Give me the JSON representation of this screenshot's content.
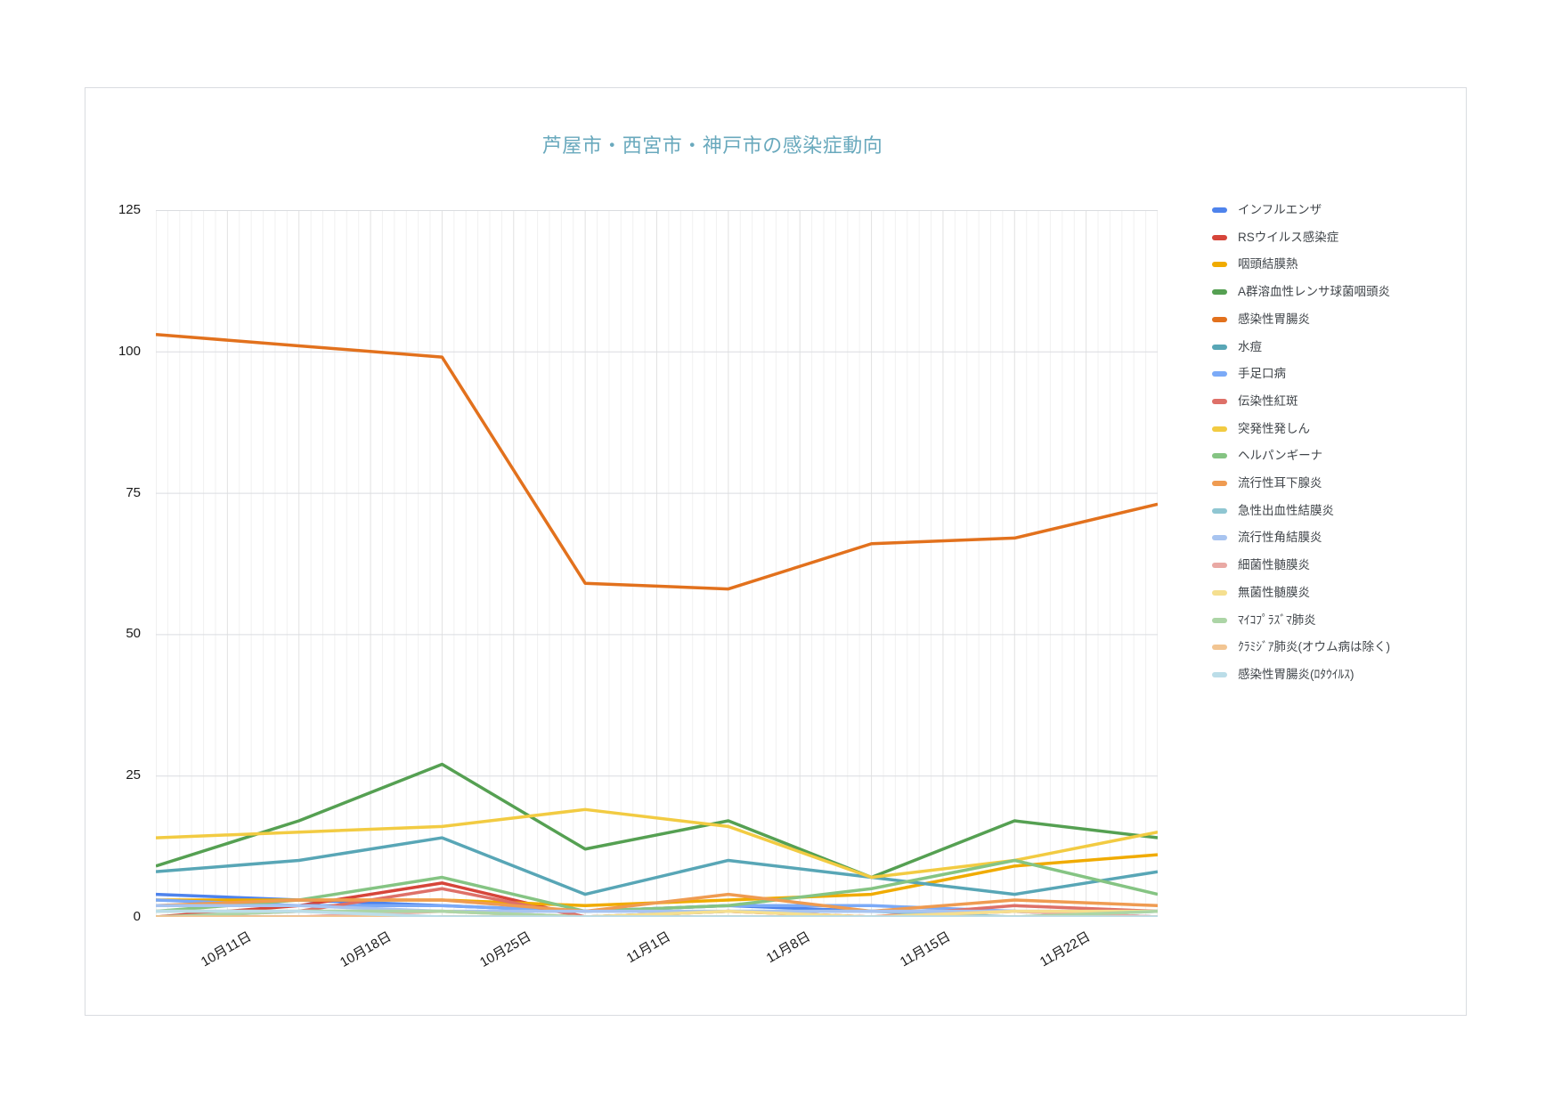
{
  "title": "芦屋市・西宮市・神戸市の感染症動向",
  "title_color": "#69a9bd",
  "chart_data": {
    "type": "line",
    "title": "芦屋市・西宮市・神戸市の感染症動向",
    "xlabel": "",
    "ylabel": "",
    "ylim": [
      0,
      125
    ],
    "y_ticks": [
      0,
      25,
      50,
      75,
      100,
      125
    ],
    "x_tick_labels": [
      "10月11日",
      "10月18日",
      "10月25日",
      "11月1日",
      "11月8日",
      "11月15日",
      "11月22日"
    ],
    "points_per_series": 8,
    "grid": "horizontal major + fine vertical minor gridlines",
    "legend_position": "right",
    "series": [
      {
        "name": "インフルエンザ",
        "color": "#4e83ec",
        "values": [
          4,
          3,
          2,
          1,
          2,
          1,
          1,
          0
        ]
      },
      {
        "name": "RSウイルス感染症",
        "color": "#d6453a",
        "values": [
          0,
          2,
          6,
          0,
          1,
          0,
          1,
          0
        ]
      },
      {
        "name": "咽頭結膜熱",
        "color": "#f0ab00",
        "values": [
          3,
          3,
          3,
          2,
          3,
          4,
          9,
          11
        ]
      },
      {
        "name": "A群溶血性レンサ球菌咽頭炎",
        "color": "#55a052",
        "values": [
          9,
          17,
          27,
          12,
          17,
          7,
          17,
          14
        ]
      },
      {
        "name": "感染性胃腸炎",
        "color": "#e2711d",
        "values": [
          103,
          101,
          99,
          59,
          58,
          66,
          67,
          73
        ]
      },
      {
        "name": "水痘",
        "color": "#58a6b6",
        "values": [
          8,
          10,
          14,
          4,
          10,
          7,
          4,
          8
        ]
      },
      {
        "name": "手足口病",
        "color": "#7baaf7",
        "values": [
          3,
          2,
          2,
          1,
          2,
          2,
          1,
          1
        ]
      },
      {
        "name": "伝染性紅斑",
        "color": "#de7068",
        "values": [
          0,
          1,
          5,
          0,
          1,
          0,
          2,
          1
        ]
      },
      {
        "name": "突発性発しん",
        "color": "#f2cb42",
        "values": [
          14,
          15,
          16,
          19,
          16,
          7,
          10,
          15
        ]
      },
      {
        "name": "ヘルパンギーナ",
        "color": "#85c483",
        "values": [
          1,
          3,
          7,
          1,
          2,
          5,
          10,
          4
        ]
      },
      {
        "name": "流行性耳下腺炎",
        "color": "#ef9b51",
        "values": [
          2,
          3,
          3,
          1,
          4,
          1,
          3,
          2
        ]
      },
      {
        "name": "急性出血性結膜炎",
        "color": "#8fc6d2",
        "values": [
          1,
          1,
          1,
          0,
          1,
          1,
          0,
          1
        ]
      },
      {
        "name": "流行性角結膜炎",
        "color": "#a8c4f0",
        "values": [
          2,
          2,
          1,
          1,
          1,
          1,
          1,
          0
        ]
      },
      {
        "name": "細菌性髄膜炎",
        "color": "#e9a9a4",
        "values": [
          0,
          0,
          1,
          0,
          0,
          0,
          1,
          0
        ]
      },
      {
        "name": "無菌性髄膜炎",
        "color": "#f5df8f",
        "values": [
          1,
          1,
          1,
          0,
          1,
          0,
          1,
          1
        ]
      },
      {
        "name": "ﾏｲｺﾌﾟﾗｽﾞﾏ肺炎",
        "color": "#acd5a6",
        "values": [
          0,
          1,
          1,
          0,
          0,
          0,
          0,
          1
        ]
      },
      {
        "name": "ｸﾗﾐｼﾞｱ肺炎(オウム病は除く)",
        "color": "#f2c592",
        "values": [
          0,
          0,
          0,
          0,
          0,
          0,
          0,
          0
        ]
      },
      {
        "name": "感染性胃腸炎(ﾛﾀｳｲﾙｽ)",
        "color": "#bbdde8",
        "values": [
          1,
          1,
          0,
          0,
          0,
          0,
          0,
          0
        ]
      }
    ]
  }
}
